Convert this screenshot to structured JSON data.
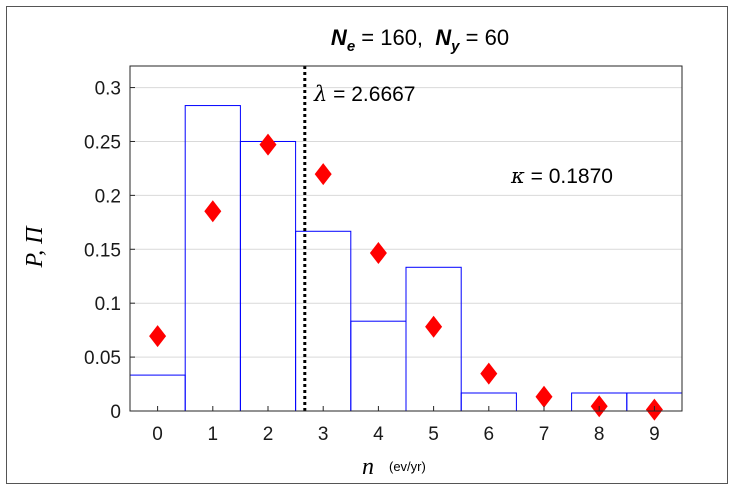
{
  "chart_data": {
    "type": "bar",
    "title": {
      "prefix_symbol": "N",
      "prefix_subscript": "e",
      "prefix_value": " = 160,  ",
      "second_symbol": "N",
      "second_subscript": "y",
      "second_value": " = 60"
    },
    "xlabel": "n",
    "xlabel_unit": "(ev/yr)",
    "ylabel": "P, Π",
    "categories": [
      "0",
      "1",
      "2",
      "3",
      "4",
      "5",
      "6",
      "7",
      "8",
      "9"
    ],
    "xlim": [
      -0.5,
      9.5
    ],
    "ylim": [
      0,
      0.32
    ],
    "yticks": [
      0,
      0.05,
      0.1,
      0.15,
      0.2,
      0.25,
      0.3
    ],
    "ytick_labels": [
      "0",
      "0.05",
      "0.1",
      "0.15",
      "0.2",
      "0.25",
      "0.3"
    ],
    "grid": true,
    "series": [
      {
        "type": "bar",
        "color": "#0000ff",
        "values": [
          0.0333,
          0.2833,
          0.25,
          0.1667,
          0.0833,
          0.1333,
          0.0167,
          0.0,
          0.0167,
          0.0167
        ]
      },
      {
        "type": "scatter",
        "marker": "diamond",
        "color": "#ff0000",
        "values": [
          0.0695,
          0.1853,
          0.2471,
          0.2197,
          0.1465,
          0.0781,
          0.0347,
          0.0132,
          0.0044,
          0.0013
        ]
      }
    ],
    "vline": {
      "x": 2.6667,
      "style": "dotted",
      "color": "#000000",
      "label_symbol": "λ",
      "label_value": " = 2.6667"
    },
    "annotation": {
      "symbol": "κ",
      "value": " = 0.1870"
    }
  }
}
